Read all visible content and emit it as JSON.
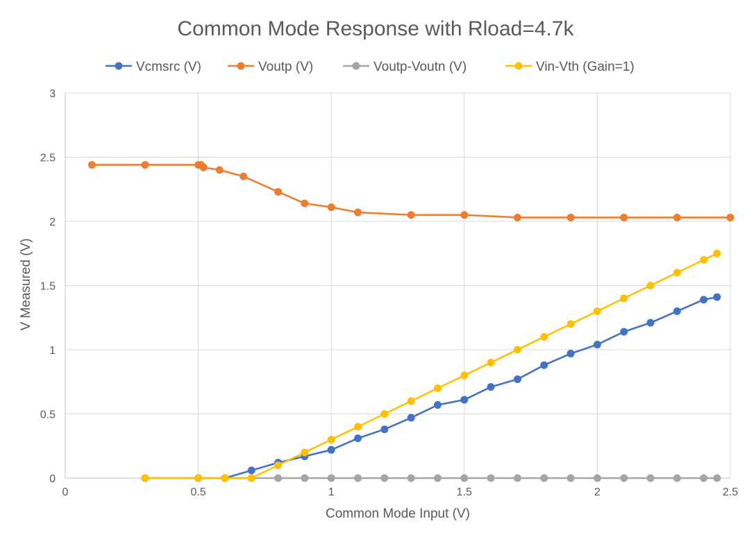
{
  "chart_data": {
    "type": "line",
    "title": "Common Mode Response with Rload=4.7k",
    "xlabel": "Common Mode Input (V)",
    "ylabel": "V Measured (V)",
    "xlim": [
      0,
      2.5
    ],
    "ylim": [
      0,
      3
    ],
    "x_ticks": [
      "0",
      "0.5",
      "1",
      "1.5",
      "2",
      "2.5"
    ],
    "y_ticks": [
      "0",
      "0.5",
      "1",
      "1.5",
      "2",
      "2.5",
      "3"
    ],
    "grid": true,
    "legend_position": "top",
    "series": [
      {
        "name": "Vcmsrc (V)",
        "color": "#4472C4",
        "points": [
          [
            0.3,
            0
          ],
          [
            0.5,
            0
          ],
          [
            0.6,
            0
          ],
          [
            0.7,
            0.06
          ],
          [
            0.8,
            0.12
          ],
          [
            0.9,
            0.17
          ],
          [
            1.0,
            0.22
          ],
          [
            1.1,
            0.31
          ],
          [
            1.2,
            0.38
          ],
          [
            1.3,
            0.47
          ],
          [
            1.4,
            0.57
          ],
          [
            1.5,
            0.61
          ],
          [
            1.6,
            0.71
          ],
          [
            1.7,
            0.77
          ],
          [
            1.8,
            0.88
          ],
          [
            1.9,
            0.97
          ],
          [
            2.0,
            1.04
          ],
          [
            2.1,
            1.14
          ],
          [
            2.2,
            1.21
          ],
          [
            2.3,
            1.3
          ],
          [
            2.4,
            1.39
          ],
          [
            2.45,
            1.41
          ]
        ]
      },
      {
        "name": "Voutp (V)",
        "color": "#ED7D31",
        "points": [
          [
            0.1,
            2.44
          ],
          [
            0.3,
            2.44
          ],
          [
            0.5,
            2.44
          ],
          [
            0.51,
            2.44
          ],
          [
            0.52,
            2.42
          ],
          [
            0.58,
            2.4
          ],
          [
            0.67,
            2.35
          ],
          [
            0.8,
            2.23
          ],
          [
            0.9,
            2.14
          ],
          [
            1.0,
            2.11
          ],
          [
            1.1,
            2.07
          ],
          [
            1.3,
            2.05
          ],
          [
            1.5,
            2.05
          ],
          [
            1.7,
            2.03
          ],
          [
            1.9,
            2.03
          ],
          [
            2.1,
            2.03
          ],
          [
            2.3,
            2.03
          ],
          [
            2.5,
            2.03
          ]
        ]
      },
      {
        "name": "Voutp-Voutn (V)",
        "color": "#A5A5A5",
        "points": [
          [
            0.3,
            0
          ],
          [
            0.5,
            0
          ],
          [
            0.6,
            0
          ],
          [
            0.7,
            0
          ],
          [
            0.8,
            0
          ],
          [
            0.9,
            0
          ],
          [
            1.0,
            0
          ],
          [
            1.1,
            0
          ],
          [
            1.2,
            0
          ],
          [
            1.3,
            0
          ],
          [
            1.4,
            0
          ],
          [
            1.5,
            0
          ],
          [
            1.6,
            0
          ],
          [
            1.7,
            0
          ],
          [
            1.8,
            0
          ],
          [
            1.9,
            0
          ],
          [
            2.0,
            0
          ],
          [
            2.1,
            0
          ],
          [
            2.2,
            0
          ],
          [
            2.3,
            0
          ],
          [
            2.4,
            0
          ],
          [
            2.45,
            0
          ]
        ]
      },
      {
        "name": "Vin-Vth (Gain=1)",
        "color": "#FFC000",
        "points": [
          [
            0.3,
            0
          ],
          [
            0.5,
            0
          ],
          [
            0.6,
            0
          ],
          [
            0.7,
            0
          ],
          [
            0.8,
            0.1
          ],
          [
            0.9,
            0.2
          ],
          [
            1.0,
            0.3
          ],
          [
            1.1,
            0.4
          ],
          [
            1.2,
            0.5
          ],
          [
            1.3,
            0.6
          ],
          [
            1.4,
            0.7
          ],
          [
            1.5,
            0.8
          ],
          [
            1.6,
            0.9
          ],
          [
            1.7,
            1.0
          ],
          [
            1.8,
            1.1
          ],
          [
            1.9,
            1.2
          ],
          [
            2.0,
            1.3
          ],
          [
            2.1,
            1.4
          ],
          [
            2.2,
            1.5
          ],
          [
            2.3,
            1.6
          ],
          [
            2.4,
            1.7
          ],
          [
            2.45,
            1.75
          ]
        ]
      }
    ]
  }
}
